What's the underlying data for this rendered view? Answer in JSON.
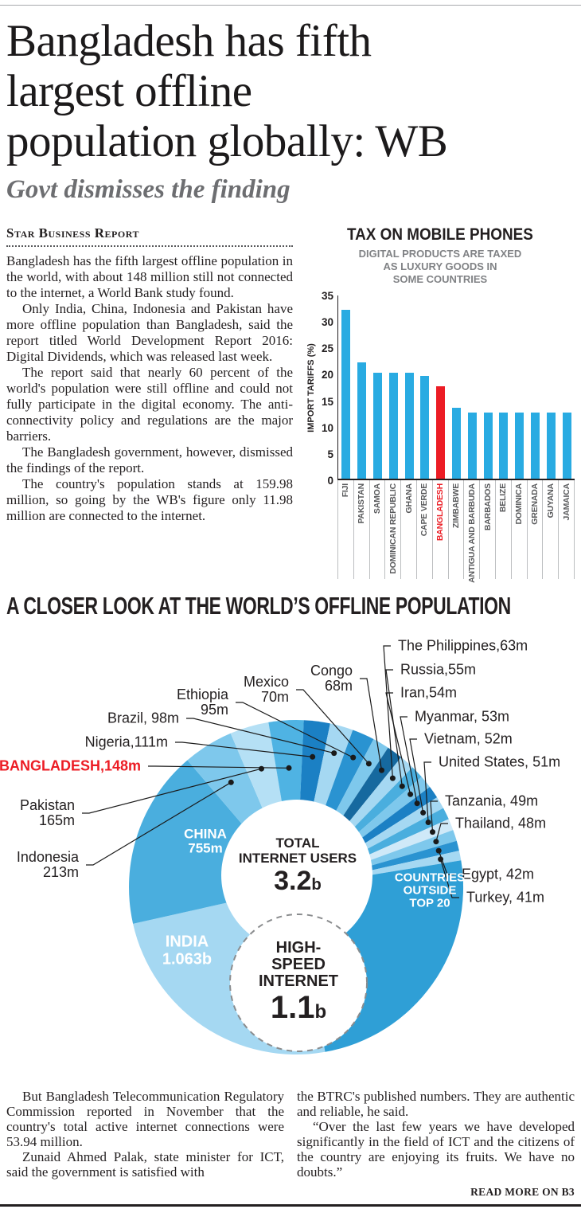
{
  "article": {
    "headline_lines": [
      "Bangladesh has fifth",
      "largest offline",
      "population globally: WB"
    ],
    "deck": "Govt dismisses the finding",
    "byline": "Star Business Report",
    "paragraphs": [
      "Bangladesh has the fifth largest offline population in the world, with about 148 million still not connected to the internet, a World Bank study found.",
      "Only India, China, Indonesia and Pakistan have more offline population than Bangladesh, said the report titled World Development Report 2016: Digital Dividends, which was released last week.",
      "The report said that nearly 60 percent of the world's population were still offline and could not fully participate in the digital economy. The anti-connectivity policy and regulations are the major barriers.",
      "The Bangladesh government, however, dismissed the findings of the report.",
      "The country's population stands at 159.98 million, so going by the WB's figure only 11.98 million are connected to the internet."
    ],
    "bottom_left_paragraphs": [
      "But Bangladesh Telecommunication Regulatory Commission reported in November that the country's total active internet connections were 53.94 million.",
      "Zunaid Ahmed Palak, state minister for ICT, said the government is satisfied with"
    ],
    "bottom_right_paragraphs": [
      "the BTRC's published numbers. They are authentic and reliable, he said.",
      "“Over the last few years we have developed significantly in the field of ICT and the citizens of the country are enjoying its fruits. We have no doubts.”"
    ],
    "read_more": "READ MORE ON B3"
  },
  "chart_data": [
    {
      "type": "bar",
      "title": "TAX ON MOBILE PHONES",
      "subtitle_lines": [
        "DIGITAL PRODUCTS ARE TAXED",
        "AS LUXURY GOODS IN",
        "SOME COUNTRIES"
      ],
      "ylabel": "IMPORT TARIFFS (%)",
      "ylim": [
        0,
        35
      ],
      "yticks": [
        0,
        5,
        10,
        15,
        20,
        25,
        30,
        35
      ],
      "categories": [
        "FIJI",
        "PAKISTAN",
        "SAMOA",
        "DOMINICAN REPUBLIC",
        "GHANA",
        "CAPE VERDE",
        "BANGLADESH",
        "ZIMBABWE",
        "ANTIGUA AND BARBUDA",
        "BARBADOS",
        "BELIZE",
        "DOMINICA",
        "GRENADA",
        "GUYANA",
        "JAMAICA"
      ],
      "values": [
        32,
        22,
        20,
        20,
        20,
        19.5,
        17.5,
        13.5,
        12.5,
        12.5,
        12.5,
        12.5,
        12.5,
        12.5,
        12.5
      ],
      "highlight_category": "BANGLADESH",
      "bar_color": "#29abe2",
      "highlight_color": "#ec1c24"
    },
    {
      "type": "pie",
      "title": "A CLOSER LOOK AT THE WORLD’S OFFLINE POPULATION",
      "unit": "offline population, millions",
      "slices": [
        {
          "name": "India",
          "value": 1063,
          "label": "INDIA\n1.063b",
          "color": "#a5d8f2"
        },
        {
          "name": "China",
          "value": 755,
          "label": "CHINA\n755m",
          "color": "#4aaede"
        },
        {
          "name": "Indonesia",
          "value": 213,
          "label": "Indonesia\n213m",
          "color": "#7ec8ec"
        },
        {
          "name": "Pakistan",
          "value": 165,
          "label": "Pakistan\n165m",
          "color": "#b5e0f5"
        },
        {
          "name": "Bangladesh",
          "value": 148,
          "label": "BANGLADESH,148m",
          "color": "#4fb3e3",
          "highlight": true
        },
        {
          "name": "Nigeria",
          "value": 111,
          "label": "Nigeria,111m",
          "color": "#1b80c4"
        },
        {
          "name": "Brazil",
          "value": 98,
          "label": "Brazil, 98m",
          "color": "#a5d8f2"
        },
        {
          "name": "Ethiopia",
          "value": 95,
          "label": "Ethiopia\n95m",
          "color": "#2a93d1"
        },
        {
          "name": "Mexico",
          "value": 70,
          "label": "Mexico\n70m",
          "color": "#7ec8ec"
        },
        {
          "name": "Congo",
          "value": 68,
          "label": "Congo\n68m",
          "color": "#16699f"
        },
        {
          "name": "The Philippines",
          "value": 63,
          "label": "The Philippines,63m",
          "color": "#a5d8f2"
        },
        {
          "name": "Russia",
          "value": 55,
          "label": "Russia,55m",
          "color": "#4aaede"
        },
        {
          "name": "Iran",
          "value": 54,
          "label": "Iran,54m",
          "color": "#7ec8ec"
        },
        {
          "name": "Myanmar",
          "value": 53,
          "label": "Myanmar, 53m",
          "color": "#1b80c4"
        },
        {
          "name": "Vietnam",
          "value": 52,
          "label": "Vietnam, 52m",
          "color": "#a5d8f2"
        },
        {
          "name": "United States",
          "value": 51,
          "label": "United States, 51m",
          "color": "#4aaede"
        },
        {
          "name": "Tanzania",
          "value": 49,
          "label": "Tanzania, 49m",
          "color": "#cfe9f8"
        },
        {
          "name": "Thailand",
          "value": 48,
          "label": "Thailand, 48m",
          "color": "#7ec8ec"
        },
        {
          "name": "Egypt",
          "value": 42,
          "label": "Egypt, 42m",
          "color": "#2a93d1"
        },
        {
          "name": "Turkey",
          "value": 41,
          "label": "Turkey, 41m",
          "color": "#a5d8f2"
        },
        {
          "name": "Countries outside top 20",
          "value": 1086,
          "label": "COUNTRIES\nOUTSIDE\nTOP 20",
          "color": "#2f9fd6"
        }
      ],
      "center": {
        "users_label_lines": [
          "TOTAL",
          "INTERNET USERS"
        ],
        "users_value": "3.2",
        "users_suffix": "b",
        "high_label_lines": [
          "HIGH-",
          "SPEED",
          "INTERNET"
        ],
        "high_value": "1.1",
        "high_suffix": "b"
      }
    }
  ]
}
